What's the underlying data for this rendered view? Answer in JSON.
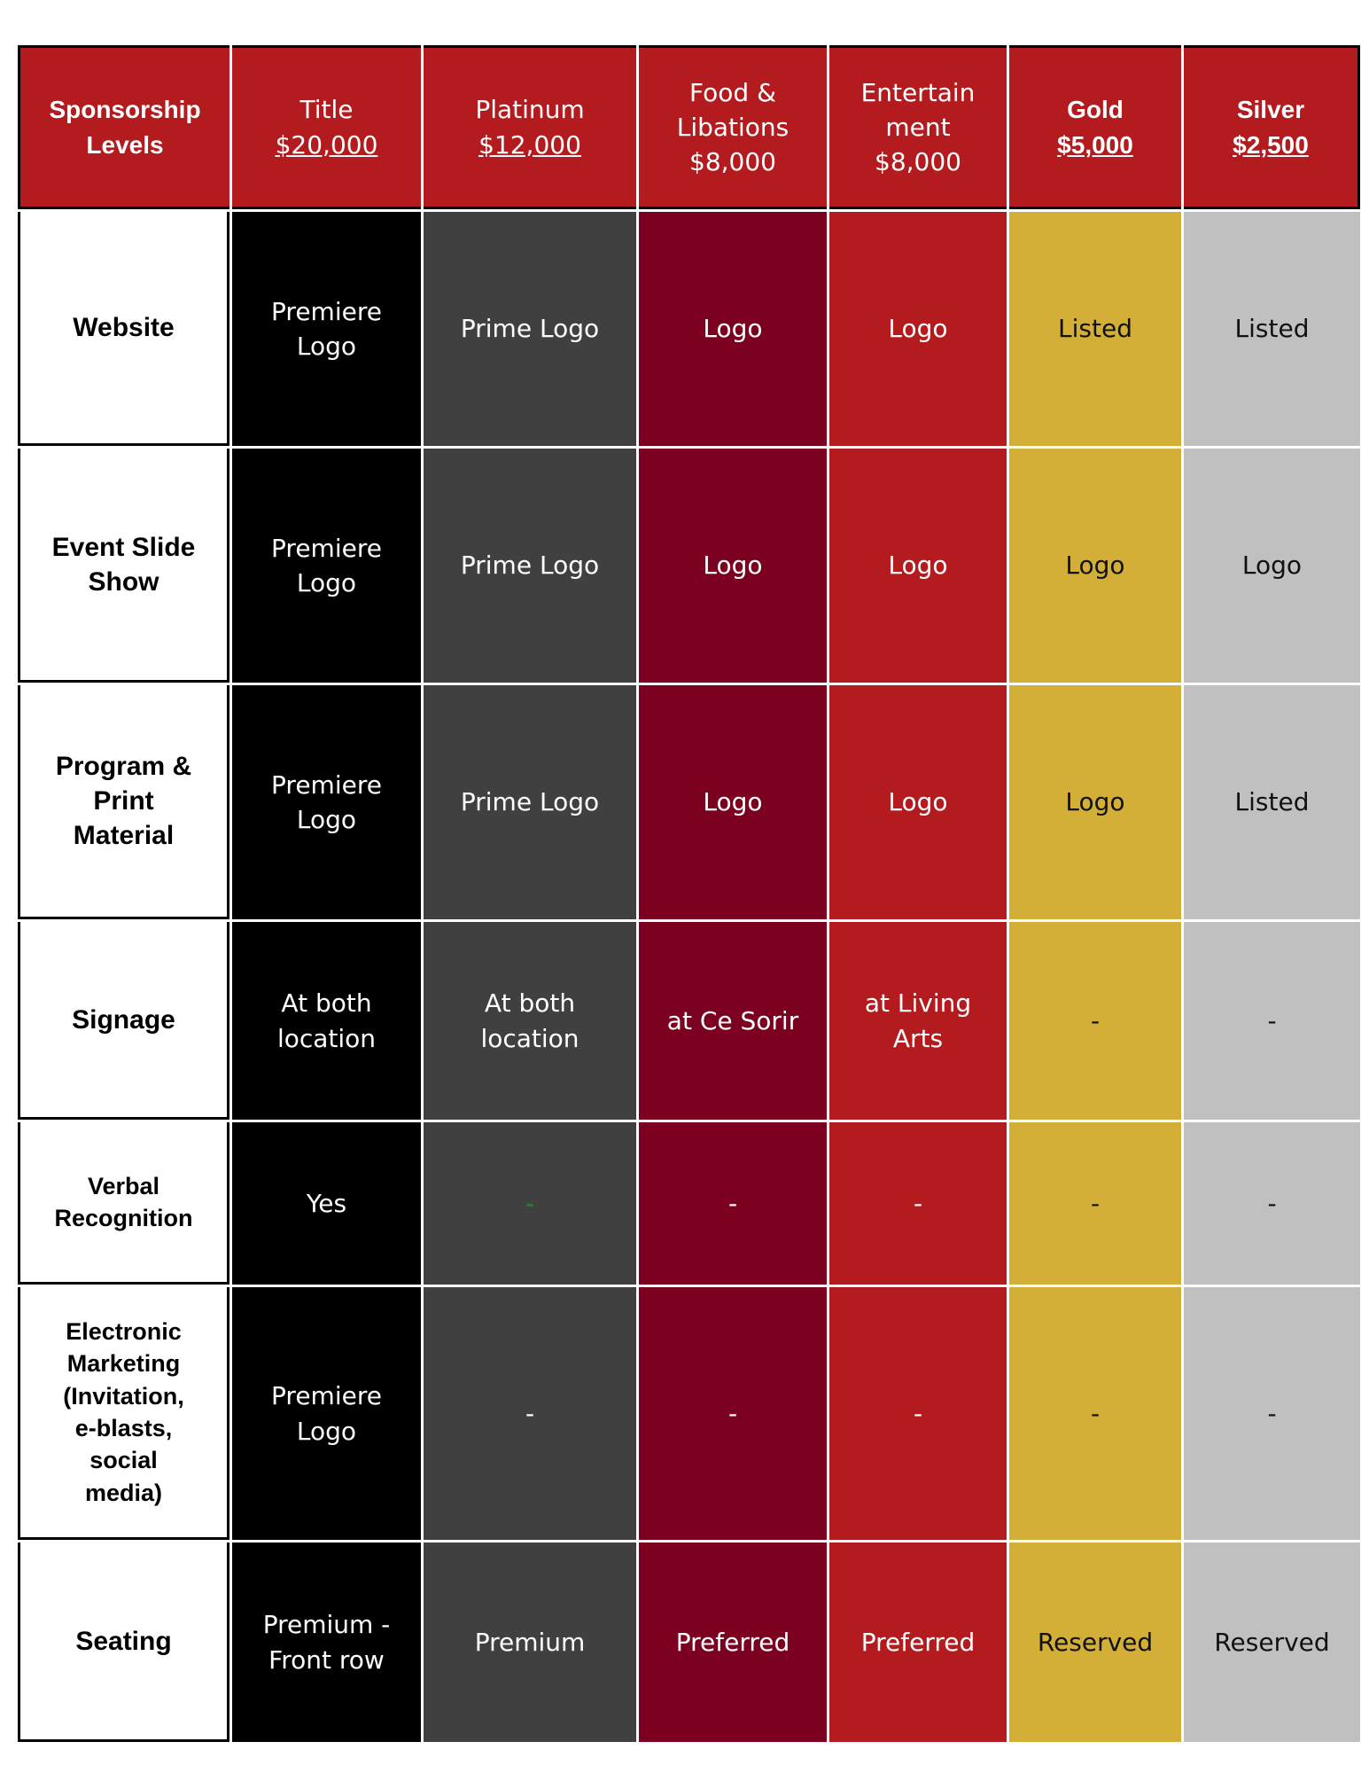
{
  "header": {
    "corner": "Sponsorship Levels",
    "columns": [
      {
        "name": "Title",
        "price": "$20,000"
      },
      {
        "name": "Platinum",
        "price": "$12,000"
      },
      {
        "name": "Food &\nLibations",
        "price": "$8,000"
      },
      {
        "name": "Entertain\nment",
        "price": "$8,000"
      },
      {
        "name": "Gold",
        "price": "$5,000"
      },
      {
        "name": "Silver",
        "price": "$2,500"
      }
    ]
  },
  "rows": [
    {
      "label": "Website",
      "cells": [
        "Premiere\nLogo",
        "Prime Logo",
        "Logo",
        "Logo",
        "Listed",
        "Listed"
      ]
    },
    {
      "label": "Event Slide\nShow",
      "cells": [
        "Premiere\nLogo",
        "Prime Logo",
        "Logo",
        "Logo",
        "Logo",
        "Logo"
      ]
    },
    {
      "label": "Program &\nPrint\nMaterial",
      "cells": [
        "Premiere\nLogo",
        "Prime Logo",
        "Logo",
        "Logo",
        "Logo",
        "Listed"
      ]
    },
    {
      "label": "Signage",
      "cells": [
        "At both\nlocation",
        "At both\nlocation",
        "at Ce Sorir",
        "at Living\nArts",
        "-",
        "-"
      ]
    },
    {
      "label": "Verbal\nRecognition",
      "cells": [
        "Yes",
        "-",
        "-",
        "-",
        "-",
        "-"
      ]
    },
    {
      "label": "Electronic\nMarketing\n(Invitation,\ne-blasts,\nsocial\nmedia)",
      "cells": [
        "Premiere\nLogo",
        "-",
        "-",
        "-",
        "-",
        "-"
      ]
    },
    {
      "label": "Seating",
      "cells": [
        "Premium -\nFront row",
        "Premium",
        "Preferred",
        "Preferred",
        "Reserved",
        "Reserved"
      ]
    }
  ],
  "colors": {
    "header": "#b31b1e",
    "title": "#000000",
    "platinum": "#404040",
    "food": "#7c0020",
    "entertainment": "#b31b1e",
    "gold": "#d4af37",
    "silver": "#c0c0c0"
  }
}
